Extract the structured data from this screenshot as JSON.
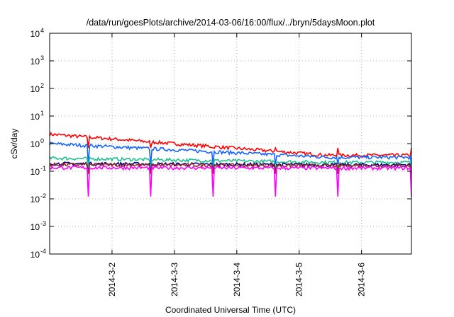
{
  "chart_data": {
    "type": "line",
    "title": "/data/run/goesPlots/archive/2014-03-06/16:00/flux/../bryn/5daysMoon.plot",
    "xlabel": "Coordinated Universal Time (UTC)",
    "ylabel": "cSv/day",
    "yscale": "log",
    "ylim_exp": [
      -4,
      4
    ],
    "xlim_days": [
      0.0,
      5.8
    ],
    "x_ticks": [
      {
        "label": "2014-3-2",
        "day": 1.0
      },
      {
        "label": "2014-3-3",
        "day": 2.0
      },
      {
        "label": "2014-3-4",
        "day": 3.0
      },
      {
        "label": "2014-3-5",
        "day": 4.0
      },
      {
        "label": "2014-3-6",
        "day": 5.0
      }
    ],
    "y_ticks": [
      {
        "exp": -4,
        "label": "10",
        "sup": "-4"
      },
      {
        "exp": -3,
        "label": "10",
        "sup": "-3"
      },
      {
        "exp": -2,
        "label": "10",
        "sup": "-2"
      },
      {
        "exp": -1,
        "label": "10",
        "sup": "-1"
      },
      {
        "exp": 0,
        "label": "10",
        "sup": "0"
      },
      {
        "exp": 1,
        "label": "10",
        "sup": "1"
      },
      {
        "exp": 2,
        "label": "10",
        "sup": "2"
      },
      {
        "exp": 3,
        "label": "10",
        "sup": "3"
      },
      {
        "exp": 4,
        "label": "10",
        "sup": "4"
      }
    ],
    "grid": true,
    "dips_days": [
      0.62,
      1.62,
      2.62,
      3.62,
      4.62,
      5.8
    ],
    "series": [
      {
        "color": "#ff0000",
        "start": 2.2,
        "end": 0.38,
        "dip_min": 0.7
      },
      {
        "color": "#1565ff",
        "start": 1.0,
        "end": 0.32,
        "dip_min": 0.18
      },
      {
        "color": "#20c090",
        "start": 0.3,
        "end": 0.21,
        "dip_min": 0.12
      },
      {
        "color": "#000080",
        "start": 0.19,
        "end": 0.17,
        "dip_min": 0.09
      },
      {
        "color": "#9a2a2a",
        "start": 0.175,
        "end": 0.16,
        "dip_min": 0.08
      },
      {
        "color": "#ff00ff",
        "start": 0.135,
        "end": 0.13,
        "dip_min": 0.012
      }
    ]
  }
}
